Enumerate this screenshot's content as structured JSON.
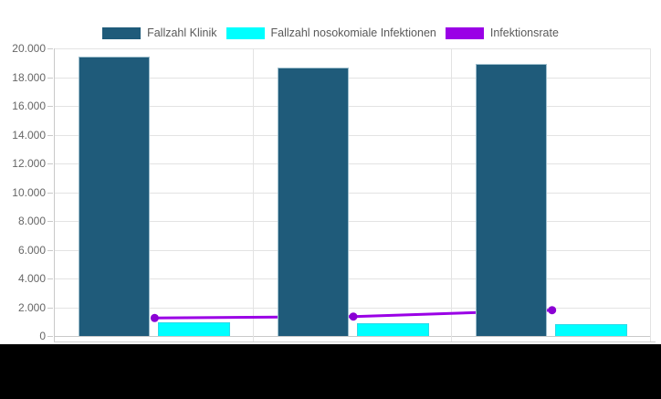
{
  "legend": {
    "items": [
      {
        "label": "Fallzahl Klinik",
        "color": "#1f5b7a"
      },
      {
        "label": "Fallzahl nosokomiale Infektionen",
        "color": "#00ffff"
      },
      {
        "label": "Infektionsrate",
        "color": "#9a00e6"
      }
    ]
  },
  "chart_data": {
    "type": "bar",
    "categories": [
      "",
      "",
      ""
    ],
    "series": [
      {
        "name": "Fallzahl Klinik",
        "type": "bar",
        "color": "#1f5b7a",
        "values": [
          19400,
          18650,
          18950
        ]
      },
      {
        "name": "Fallzahl nosokomiale Infektionen",
        "type": "bar",
        "color": "#00ffff",
        "values": [
          950,
          880,
          850
        ]
      },
      {
        "name": "Infektionsrate",
        "type": "line",
        "color": "#9a00e6",
        "marker_color": "#8b00d4",
        "values": [
          1250,
          1350,
          1800
        ]
      }
    ],
    "ylim": [
      0,
      20000
    ],
    "y_ticks": [
      "20.000",
      "18.000",
      "16.000",
      "14.000",
      "12.000",
      "10.000",
      "8.000",
      "6.000",
      "4.000",
      "2.000",
      "0"
    ],
    "grid": true,
    "legend_position": "top",
    "xlabel": "",
    "ylabel": ""
  }
}
